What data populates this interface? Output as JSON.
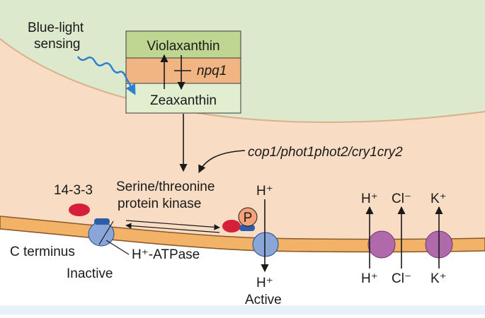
{
  "colors": {
    "chloroplast": "#dde9cc",
    "cytosol": "#f8dcc4",
    "membrane_band": "#f2b368",
    "xanthophyll_top": "#bfd692",
    "xanthophyll_mid": "#f1b583",
    "xanthophyll_bottom": "#e2eed0",
    "protein_red": "#d6203a",
    "atpase_blue": "#8aa6d8",
    "channel_purple": "#b06aac",
    "phosphate": "#f3a27a",
    "light_wave": "#2f7fd0",
    "bottom_strip": "#e6f2f7"
  },
  "labels": {
    "blue_light_line1": "Blue-light",
    "blue_light_line2": "sensing",
    "violaxanthin": "Violaxanthin",
    "npq1": "npq1",
    "zeaxanthin": "Zeaxanthin",
    "mutants": "cop1/phot1phot2/cry1cry2",
    "kinase_line1": "Serine/threonine",
    "kinase_line2": "protein kinase",
    "protein_1433": "14-3-3",
    "phosphate": "P",
    "h_plus_in_active": "H⁺",
    "h_plus_out_active": "H⁺",
    "c_terminus": "C terminus",
    "atpase": "H⁺-ATPase",
    "inactive": "Inactive",
    "active": "Active",
    "channel_h_top": "H⁺",
    "channel_cl_top": "Cl⁻",
    "channel_k_top": "K⁺",
    "channel_h_bottom": "H⁺",
    "channel_cl_bottom": "Cl⁻",
    "channel_k_bottom": "K⁺"
  }
}
